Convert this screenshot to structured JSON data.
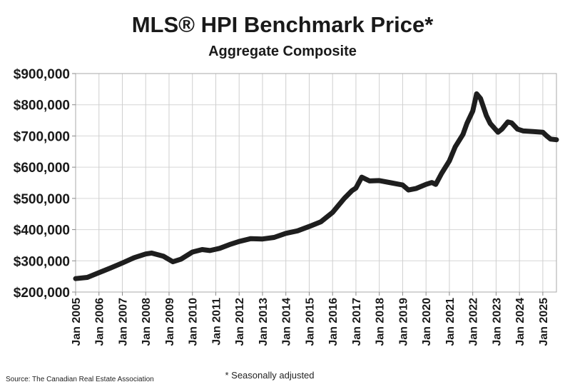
{
  "chart_data": {
    "type": "line",
    "title": "MLS® HPI Benchmark Price*",
    "subtitle": "Aggregate Composite",
    "xlabel": "",
    "ylabel": "",
    "ylim": [
      200000,
      900000
    ],
    "xlim": [
      "2005-01",
      "2025-08"
    ],
    "grid": true,
    "y_ticks": [
      "$200,000",
      "$300,000",
      "$400,000",
      "$500,000",
      "$600,000",
      "$700,000",
      "$800,000",
      "$900,000"
    ],
    "x_ticks": [
      "Jan 2005",
      "Jan 2006",
      "Jan 2007",
      "Jan 2008",
      "Jan 2009",
      "Jan 2010",
      "Jan 2011",
      "Jan 2012",
      "Jan 2013",
      "Jan 2014",
      "Jan 2015",
      "Jan 2016",
      "Jan 2017",
      "Jan 2018",
      "Jan 2019",
      "Jan 2020",
      "Jan 2021",
      "Jan 2022",
      "Jan 2023",
      "Jan 2024",
      "Jan 2025"
    ],
    "line_color": "#1e1e1e",
    "series": [
      {
        "x": [
          "2005-01",
          "2005-07",
          "2006-01",
          "2006-07",
          "2007-01",
          "2007-07",
          "2008-01",
          "2008-04",
          "2008-10",
          "2009-03",
          "2009-07",
          "2010-01",
          "2010-06",
          "2010-10",
          "2011-03",
          "2011-08",
          "2012-01",
          "2012-07",
          "2013-01",
          "2013-07",
          "2014-01",
          "2014-07",
          "2015-01",
          "2015-07",
          "2016-01",
          "2016-07",
          "2016-11",
          "2017-01",
          "2017-04",
          "2017-08",
          "2018-01",
          "2018-07",
          "2019-01",
          "2019-04",
          "2019-08",
          "2020-01",
          "2020-04",
          "2020-06",
          "2020-09",
          "2021-01",
          "2021-04",
          "2021-08",
          "2021-10",
          "2022-01",
          "2022-03",
          "2022-05",
          "2022-08",
          "2022-10",
          "2023-02",
          "2023-04",
          "2023-07",
          "2023-09",
          "2023-12",
          "2024-03",
          "2024-08",
          "2025-01",
          "2025-03",
          "2025-05",
          "2025-08"
        ],
        "values": [
          243000,
          247000,
          262000,
          277000,
          293000,
          310000,
          322000,
          325000,
          315000,
          297000,
          305000,
          328000,
          336000,
          333000,
          340000,
          352000,
          362000,
          371000,
          370000,
          375000,
          388000,
          396000,
          410000,
          425000,
          455000,
          500000,
          525000,
          533000,
          568000,
          556000,
          557000,
          550000,
          543000,
          527000,
          532000,
          545000,
          551000,
          545000,
          580000,
          620000,
          665000,
          705000,
          740000,
          780000,
          835000,
          820000,
          765000,
          740000,
          712000,
          722000,
          745000,
          742000,
          722000,
          716000,
          714000,
          712000,
          700000,
          690000,
          688000
        ]
      }
    ],
    "notes": {
      "source": "Source: The Canadian Real Estate Association",
      "footnote": "* Seasonally adjusted"
    }
  }
}
